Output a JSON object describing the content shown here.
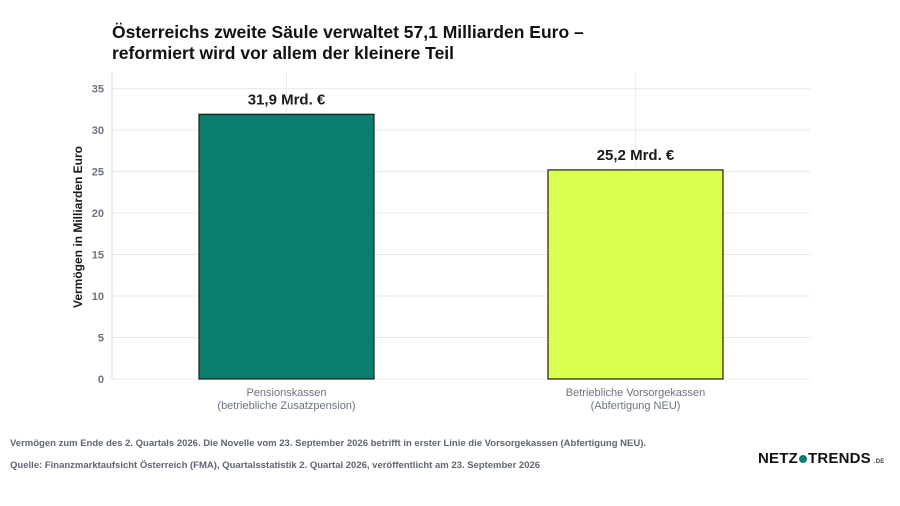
{
  "title": {
    "line1": "Österreichs zweite Säule verwaltet 57,1 Milliarden Euro –",
    "line2": "reformiert wird vor allem der kleinere Teil"
  },
  "chart_data": {
    "type": "bar",
    "ylabel": "Vermögen in Milliarden Euro",
    "ylim": [
      0,
      37
    ],
    "yticks": [
      0,
      5,
      10,
      15,
      20,
      25,
      30,
      35
    ],
    "grid": true,
    "categories": [
      [
        "Pensionskassen",
        "(betriebliche Zusatzpension)"
      ],
      [
        "Betriebliche Vorsorgekassen",
        "(Abfertigung NEU)"
      ]
    ],
    "values": [
      31.9,
      25.2
    ],
    "data_labels": [
      "31,9 Mrd. €",
      "25,2 Mrd. €"
    ],
    "colors": [
      "#0b7e6e",
      "#d9ff4f"
    ]
  },
  "footnotes": {
    "note": "Vermögen zum Ende des 2. Quartals 2026. Die Novelle vom 23. September 2026 betrifft in erster Linie die Vorsorgekassen (Abfertigung NEU).",
    "source": "Quelle: Finanzmarktaufsicht Österreich (FMA), Quartalsstatistik 2. Quartal 2026, veröffentlicht am 23. September 2026"
  },
  "logo": {
    "left": "NETZ",
    "right": "TRENDS",
    "suffix": ".DE",
    "accent_color": "#0b7e6e"
  }
}
